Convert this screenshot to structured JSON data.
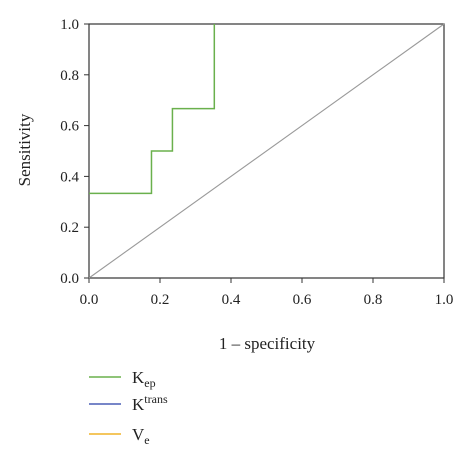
{
  "chart_data": {
    "type": "line",
    "title": "",
    "xlabel": "1 – specificity",
    "ylabel": "Sensitivity",
    "xlim": [
      0.0,
      1.0
    ],
    "ylim": [
      0.0,
      1.0
    ],
    "x_ticks": [
      "0.0",
      "0.2",
      "0.4",
      "0.6",
      "0.8",
      "1.0"
    ],
    "y_ticks": [
      "0.0",
      "0.2",
      "0.4",
      "0.6",
      "0.8",
      "1.0"
    ],
    "grid": false,
    "legend_position": "bottom-left",
    "series": [
      {
        "name_main": "K",
        "name_sub": "ep",
        "name_script": "sub",
        "color": "#6ab04c",
        "x": [
          0.0,
          0.176,
          0.176,
          0.235,
          0.235,
          0.353,
          0.353
        ],
        "y": [
          0.333,
          0.333,
          0.5,
          0.5,
          0.667,
          0.667,
          1.0
        ]
      },
      {
        "name_main": "K",
        "name_sub": "trans",
        "name_script": "sup",
        "color": "#4a5fb5",
        "x": [],
        "y": []
      },
      {
        "name_main": "V",
        "name_sub": "e",
        "name_script": "sub",
        "color": "#f0b429",
        "x": [],
        "y": []
      }
    ],
    "reference_line": {
      "x": [
        0.0,
        1.0
      ],
      "y": [
        0.0,
        1.0
      ],
      "color": "#9a9a9a"
    }
  }
}
